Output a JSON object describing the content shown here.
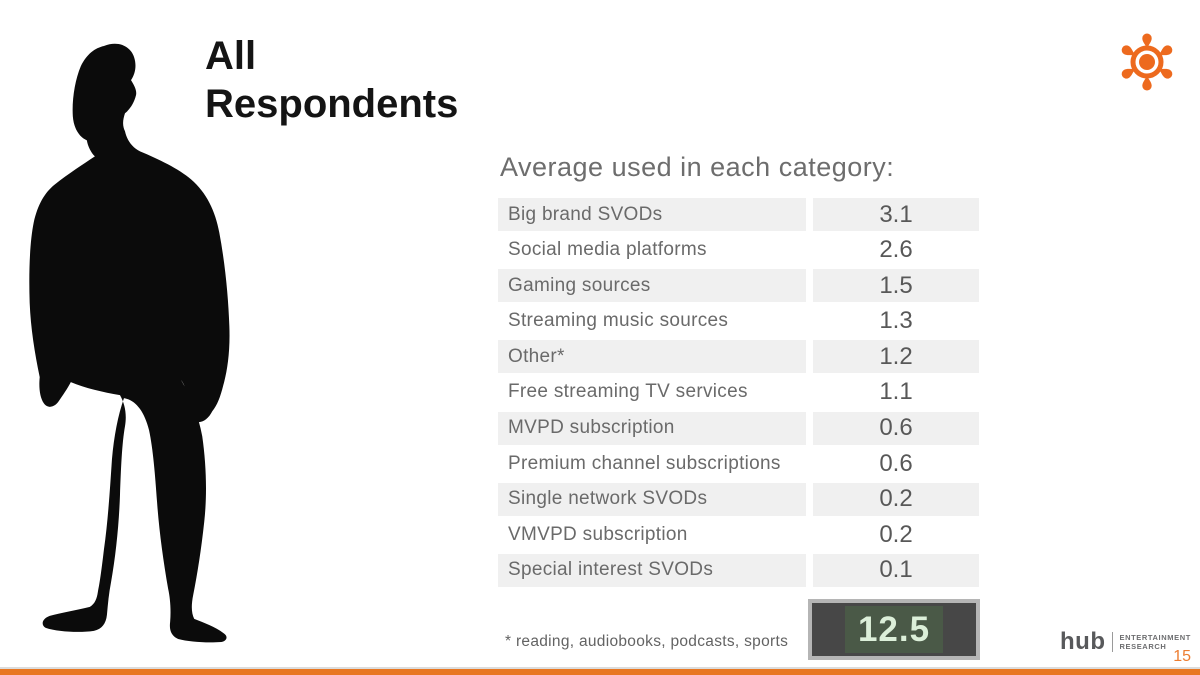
{
  "slide": {
    "title_line1": "All",
    "title_line2": "Respondents",
    "page_number": "15"
  },
  "table": {
    "heading": "Average used in each category:",
    "rows": [
      {
        "label": "Big brand SVODs",
        "value": "3.1"
      },
      {
        "label": "Social media platforms",
        "value": "2.6"
      },
      {
        "label": "Gaming sources",
        "value": "1.5"
      },
      {
        "label": "Streaming music sources",
        "value": "1.3"
      },
      {
        "label": "Other*",
        "value": "1.2"
      },
      {
        "label": "Free streaming TV services",
        "value": "1.1"
      },
      {
        "label": "MVPD subscription",
        "value": "0.6"
      },
      {
        "label": "Premium channel subscriptions",
        "value": "0.6"
      },
      {
        "label": "Single network SVODs",
        "value": "0.2"
      },
      {
        "label": "VMVPD subscription",
        "value": "0.2"
      },
      {
        "label": "Special interest SVODs",
        "value": "0.1"
      }
    ],
    "footnote": "* reading, audiobooks, podcasts, sports",
    "total": "12.5"
  },
  "branding": {
    "logo_icon": "sunburst-droplets-icon",
    "figure": "standing-man-silhouette",
    "name": "hub",
    "tagline_line1": "ENTERTAINMENT",
    "tagline_line2": "RESEARCH"
  },
  "colors": {
    "accent_orange": "#ED6A1E",
    "bottom_bar_orange": "#E87722",
    "page_number_orange": "#ED7D31",
    "row_shade_gray": "#F0F0F0",
    "label_text_gray": "#6A6A6A",
    "heading_gray": "#6D6D6D",
    "total_box_background": "#474747",
    "total_box_border": "#B5B5B5",
    "total_box_highlight": "#4A5947",
    "total_text_green": "#DCEFD9",
    "silhouette_black": "#0B0B0B"
  },
  "chart_data": {
    "type": "table",
    "title": "Average used in each category:",
    "categories": [
      "Big brand SVODs",
      "Social media platforms",
      "Gaming sources",
      "Streaming music sources",
      "Other*",
      "Free streaming TV services",
      "MVPD subscription",
      "Premium channel subscriptions",
      "Single network SVODs",
      "VMVPD subscription",
      "Special interest SVODs"
    ],
    "values": [
      3.1,
      2.6,
      1.5,
      1.3,
      1.2,
      1.1,
      0.6,
      0.6,
      0.2,
      0.2,
      0.1
    ],
    "total": 12.5,
    "footnote": "* reading, audiobooks, podcasts, sports",
    "audience": "All Respondents"
  }
}
